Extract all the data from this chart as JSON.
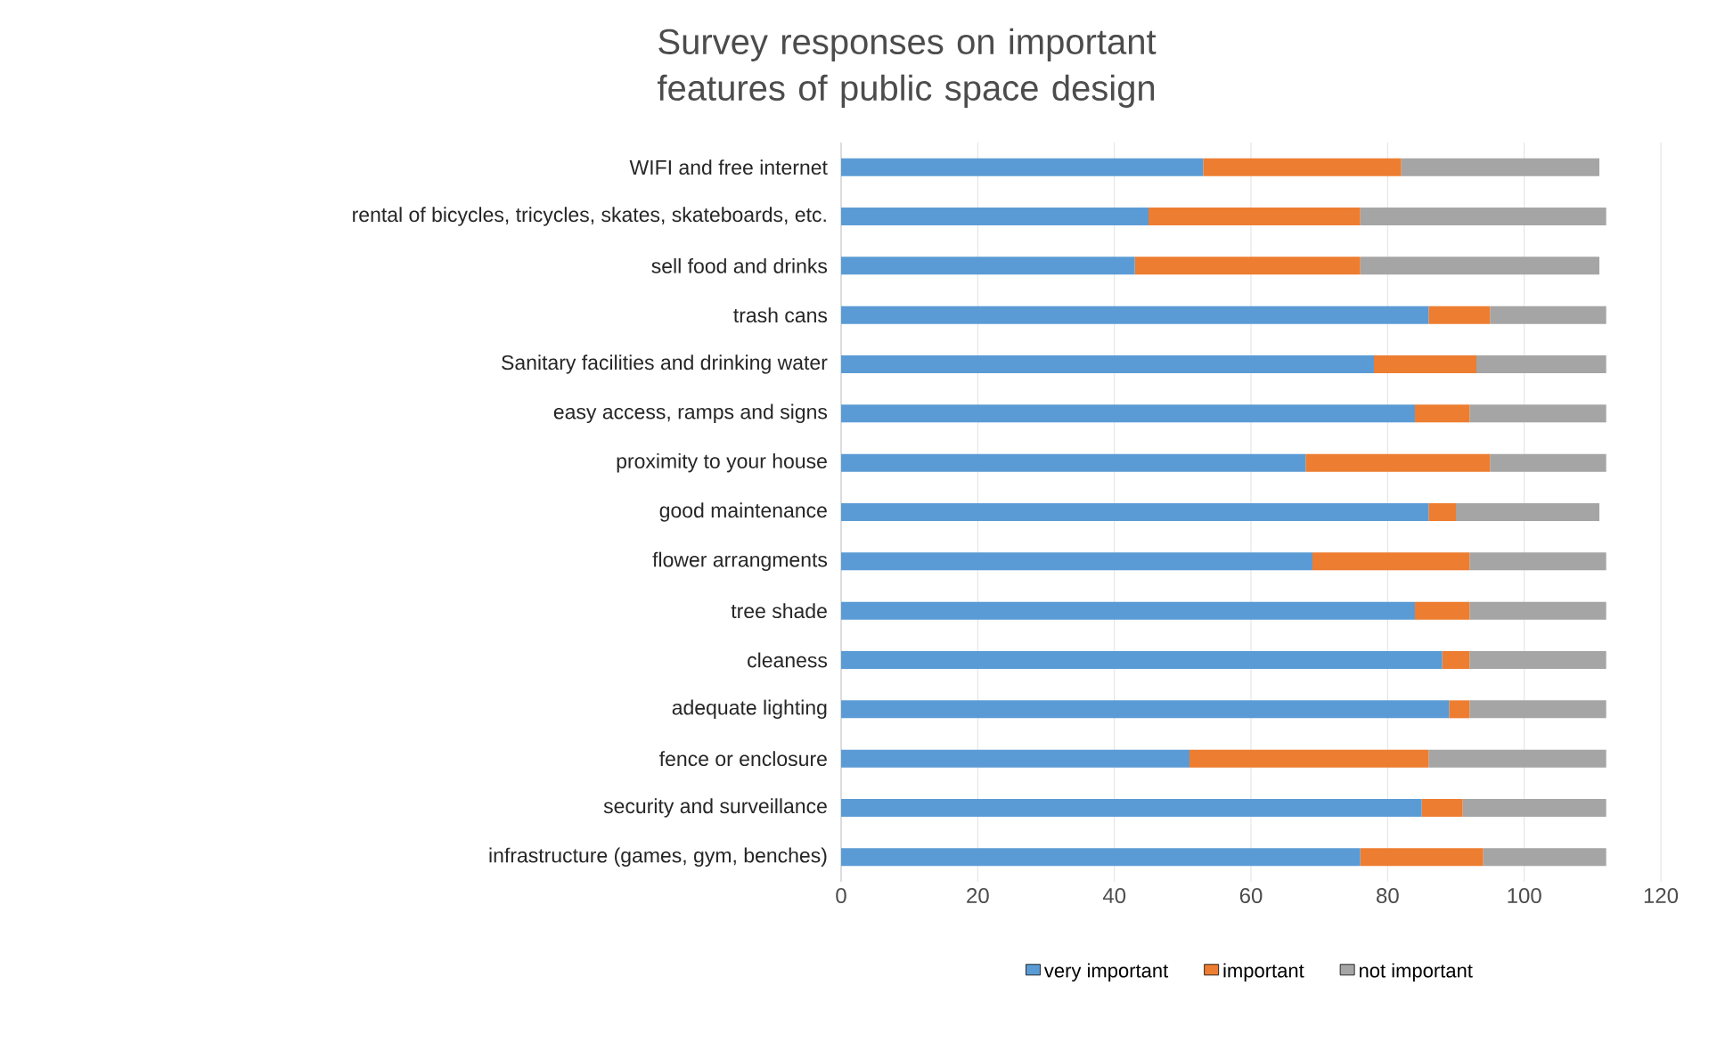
{
  "chart_data": {
    "type": "bar",
    "orientation": "horizontal",
    "stacked": true,
    "title": "Survey responses on important features of public space design",
    "categories": [
      "WIFI and free internet",
      "rental of bicycles, tricycles, skates, skateboards, etc.",
      "sell food and drinks",
      "trash cans",
      "Sanitary facilities and drinking water",
      "easy access, ramps and signs",
      "proximity to your house",
      "good maintenance",
      "flower arrangments",
      "tree shade",
      "cleaness",
      "adequate lighting",
      "fence or enclosure",
      "security and surveillance",
      "infrastructure (games, gym, benches)"
    ],
    "series": [
      {
        "name": "very important",
        "color": "#5b9bd5",
        "values": [
          53,
          45,
          43,
          86,
          78,
          84,
          68,
          86,
          69,
          84,
          88,
          89,
          51,
          85,
          76
        ]
      },
      {
        "name": "important",
        "color": "#ed7d31",
        "values": [
          29,
          31,
          33,
          9,
          15,
          8,
          27,
          4,
          23,
          8,
          4,
          3,
          35,
          6,
          18
        ]
      },
      {
        "name": "not important",
        "color": "#a5a5a5",
        "values": [
          29,
          36,
          35,
          17,
          19,
          20,
          17,
          21,
          20,
          20,
          20,
          20,
          26,
          21,
          18
        ]
      }
    ],
    "xlim": [
      0,
      120
    ],
    "xticks": [
      0,
      20,
      40,
      60,
      80,
      100,
      120
    ],
    "grid": "x",
    "legend": "bottom"
  }
}
